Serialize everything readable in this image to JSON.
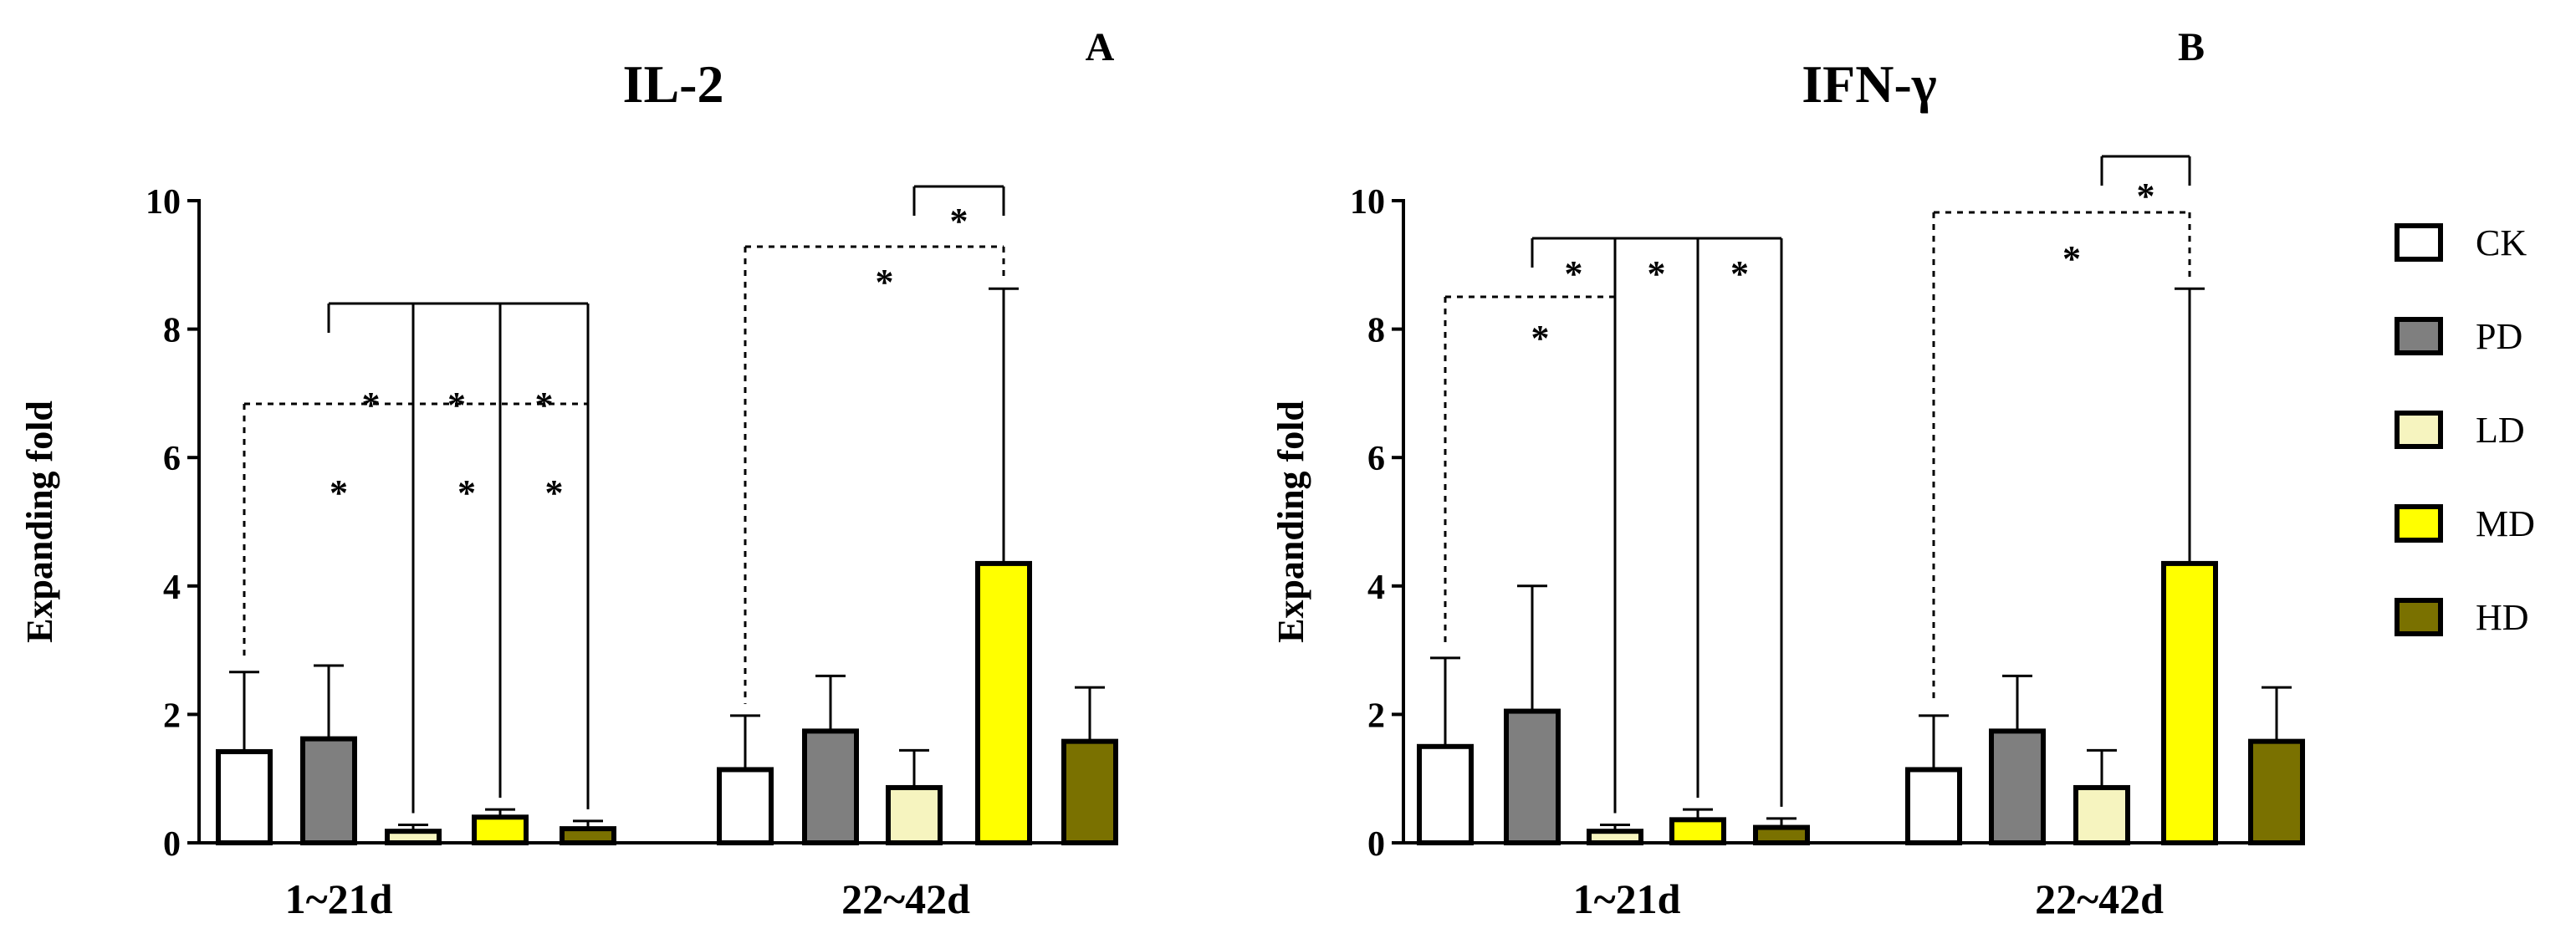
{
  "chart_data": [
    {
      "type": "bar",
      "panel_label": "A",
      "title": "IL-2",
      "xlabel": "",
      "ylabel": "Expanding fold",
      "ylim": [
        0,
        10
      ],
      "yticks": [
        0,
        2,
        4,
        6,
        8,
        10
      ],
      "categories": [
        "1~21d",
        "22~42d"
      ],
      "series": [
        {
          "name": "CK",
          "values": [
            1.42,
            1.14
          ],
          "errors": [
            1.24,
            0.84
          ]
        },
        {
          "name": "PD",
          "values": [
            1.62,
            1.74
          ],
          "errors": [
            1.14,
            0.86
          ]
        },
        {
          "name": "LD",
          "values": [
            0.18,
            0.86
          ],
          "errors": [
            0.1,
            0.58
          ]
        },
        {
          "name": "MD",
          "values": [
            0.4,
            4.35
          ],
          "errors": [
            0.12,
            4.28
          ]
        },
        {
          "name": "HD",
          "values": [
            0.22,
            1.58
          ],
          "errors": [
            0.12,
            0.84
          ]
        }
      ],
      "significance": [
        {
          "from": "PD",
          "to": "LD",
          "group": "1~21d",
          "style": "solid",
          "label": "*"
        },
        {
          "from": "PD",
          "to": "MD",
          "group": "1~21d",
          "style": "solid",
          "label": "*"
        },
        {
          "from": "PD",
          "to": "HD",
          "group": "1~21d",
          "style": "solid",
          "label": "*"
        },
        {
          "from": "CK",
          "to": "LD",
          "group": "1~21d",
          "style": "dashed",
          "label": "*"
        },
        {
          "from": "CK",
          "to": "MD",
          "group": "1~21d",
          "style": "dashed",
          "label": "*"
        },
        {
          "from": "CK",
          "to": "HD",
          "group": "1~21d",
          "style": "dashed",
          "label": "*"
        },
        {
          "from": "LD",
          "to": "MD",
          "group": "22~42d",
          "style": "solid",
          "label": "*"
        },
        {
          "from": "CK",
          "to": "MD",
          "group": "22~42d",
          "style": "dashed",
          "label": "*"
        }
      ]
    },
    {
      "type": "bar",
      "panel_label": "B",
      "title": "IFN-γ",
      "xlabel": "",
      "ylabel": "Expanding fold",
      "ylim": [
        0,
        10
      ],
      "yticks": [
        0,
        2,
        4,
        6,
        8,
        10
      ],
      "categories": [
        "1~21d",
        "22~42d"
      ],
      "series": [
        {
          "name": "CK",
          "values": [
            1.5,
            1.14
          ],
          "errors": [
            1.38,
            0.84
          ]
        },
        {
          "name": "PD",
          "values": [
            2.05,
            1.74
          ],
          "errors": [
            1.95,
            0.86
          ]
        },
        {
          "name": "LD",
          "values": [
            0.18,
            0.86
          ],
          "errors": [
            0.1,
            0.58
          ]
        },
        {
          "name": "MD",
          "values": [
            0.36,
            4.35
          ],
          "errors": [
            0.16,
            4.28
          ]
        },
        {
          "name": "HD",
          "values": [
            0.24,
            1.58
          ],
          "errors": [
            0.14,
            0.84
          ]
        }
      ],
      "significance": [
        {
          "from": "PD",
          "to": "LD",
          "group": "1~21d",
          "style": "solid",
          "label": "*"
        },
        {
          "from": "PD",
          "to": "MD",
          "group": "1~21d",
          "style": "solid",
          "label": "*"
        },
        {
          "from": "PD",
          "to": "HD",
          "group": "1~21d",
          "style": "solid",
          "label": "*"
        },
        {
          "from": "CK",
          "to": "LD",
          "group": "1~21d",
          "style": "dashed",
          "label": "*"
        },
        {
          "from": "LD",
          "to": "MD",
          "group": "22~42d",
          "style": "solid",
          "label": "*"
        },
        {
          "from": "CK",
          "to": "MD",
          "group": "22~42d",
          "style": "dashed",
          "label": "*"
        }
      ]
    }
  ],
  "legend": {
    "placement": "right",
    "items": [
      {
        "name": "CK",
        "color": "#ffffff"
      },
      {
        "name": "PD",
        "color": "#7f7f7f"
      },
      {
        "name": "LD",
        "color": "#f6f4bf"
      },
      {
        "name": "MD",
        "color": "#ffff00"
      },
      {
        "name": "HD",
        "color": "#7a7100"
      }
    ]
  }
}
